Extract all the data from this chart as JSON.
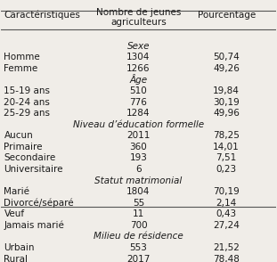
{
  "headers": [
    "Caractéristiques",
    "Nombre de jeunes\nagriculteurs",
    "Pourcentage"
  ],
  "rows": [
    {
      "type": "section",
      "label": "Sexe"
    },
    {
      "type": "data",
      "col1": "Homme",
      "col2": "1304",
      "col3": "50,74"
    },
    {
      "type": "data",
      "col1": "Femme",
      "col2": "1266",
      "col3": "49,26"
    },
    {
      "type": "section",
      "label": "Âge"
    },
    {
      "type": "data",
      "col1": "15-19 ans",
      "col2": "510",
      "col3": "19,84"
    },
    {
      "type": "data",
      "col1": "20-24 ans",
      "col2": "776",
      "col3": "30,19"
    },
    {
      "type": "data",
      "col1": "25-29 ans",
      "col2": "1284",
      "col3": "49,96"
    },
    {
      "type": "section",
      "label": "Niveau d’éducation formelle"
    },
    {
      "type": "data",
      "col1": "Aucun",
      "col2": "2011",
      "col3": "78,25"
    },
    {
      "type": "data",
      "col1": "Primaire",
      "col2": "360",
      "col3": "14,01"
    },
    {
      "type": "data",
      "col1": "Secondaire",
      "col2": "193",
      "col3": "7,51"
    },
    {
      "type": "data",
      "col1": "Universitaire",
      "col2": "6",
      "col3": "0,23"
    },
    {
      "type": "section",
      "label": "Statut matrimonial"
    },
    {
      "type": "data",
      "col1": "Marié",
      "col2": "1804",
      "col3": "70,19"
    },
    {
      "type": "data",
      "col1": "Divorcé/séparé",
      "col2": "55",
      "col3": "2,14"
    },
    {
      "type": "data",
      "col1": "Veuf",
      "col2": "11",
      "col3": "0,43"
    },
    {
      "type": "data",
      "col1": "Jamais marié",
      "col2": "700",
      "col3": "27,24"
    },
    {
      "type": "section",
      "label": "Milieu de résidence"
    },
    {
      "type": "data",
      "col1": "Urbain",
      "col2": "553",
      "col3": "21,52"
    },
    {
      "type": "data",
      "col1": "Rural",
      "col2": "2017",
      "col3": "78,48"
    }
  ],
  "bg_color": "#f0ede8",
  "text_color": "#1a1a1a",
  "header_line_color": "#555555",
  "fontsize": 7.5,
  "header_fontsize": 7.5,
  "section_fontsize": 7.5
}
